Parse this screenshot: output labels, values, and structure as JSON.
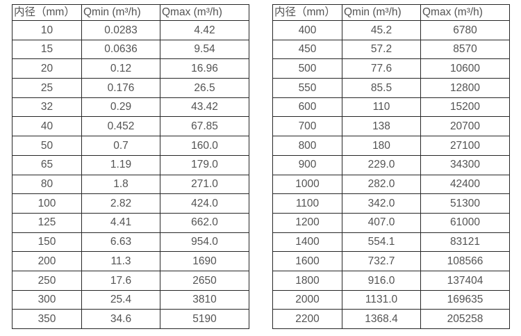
{
  "page": {
    "background": "#ffffff",
    "description_colors": {
      "table_border": "#262626",
      "table_text": "#535353"
    }
  },
  "tables": [
    {
      "name": "flow-range-table-small-diameters",
      "headers": [
        "内径（mm）",
        "Qmin (m³/h)",
        "Qmax (m³/h)"
      ],
      "rows": [
        [
          "10",
          "0.0283",
          "4.42"
        ],
        [
          "15",
          "0.0636",
          "9.54"
        ],
        [
          "20",
          "0.12",
          "16.96"
        ],
        [
          "25",
          "0.176",
          "26.5"
        ],
        [
          "32",
          "0.29",
          "43.42"
        ],
        [
          "40",
          "0.452",
          "67.85"
        ],
        [
          "50",
          "0.7",
          "160.0"
        ],
        [
          "65",
          "1.19",
          "179.0"
        ],
        [
          "80",
          "1.8",
          "271.0"
        ],
        [
          "100",
          "2.82",
          "424.0"
        ],
        [
          "125",
          "4.41",
          "662.0"
        ],
        [
          "150",
          "6.63",
          "954.0"
        ],
        [
          "200",
          "11.3",
          "1690"
        ],
        [
          "250",
          "17.6",
          "2650"
        ],
        [
          "300",
          "25.4",
          "3810"
        ],
        [
          "350",
          "34.6",
          "5190"
        ]
      ]
    },
    {
      "name": "flow-range-table-large-diameters",
      "headers": [
        "内径（mm）",
        "Qmin (m³/h)",
        "Qmax (m³/h)"
      ],
      "rows": [
        [
          "400",
          "45.2",
          "6780"
        ],
        [
          "450",
          "57.2",
          "8570"
        ],
        [
          "500",
          "77.6",
          "10600"
        ],
        [
          "550",
          "85.5",
          "12800"
        ],
        [
          "600",
          "110",
          "15200"
        ],
        [
          "700",
          "138",
          "20700"
        ],
        [
          "800",
          "180",
          "27100"
        ],
        [
          "900",
          "229.0",
          "34300"
        ],
        [
          "1000",
          "282.0",
          "42400"
        ],
        [
          "1100",
          "342.0",
          "51300"
        ],
        [
          "1200",
          "407.0",
          "61000"
        ],
        [
          "1400",
          "554.1",
          "83121"
        ],
        [
          "1600",
          "732.7",
          "108566"
        ],
        [
          "1800",
          "916.0",
          "137404"
        ],
        [
          "2000",
          "1131.0",
          "169635"
        ],
        [
          "2200",
          "1368.4",
          "205258"
        ]
      ]
    }
  ]
}
